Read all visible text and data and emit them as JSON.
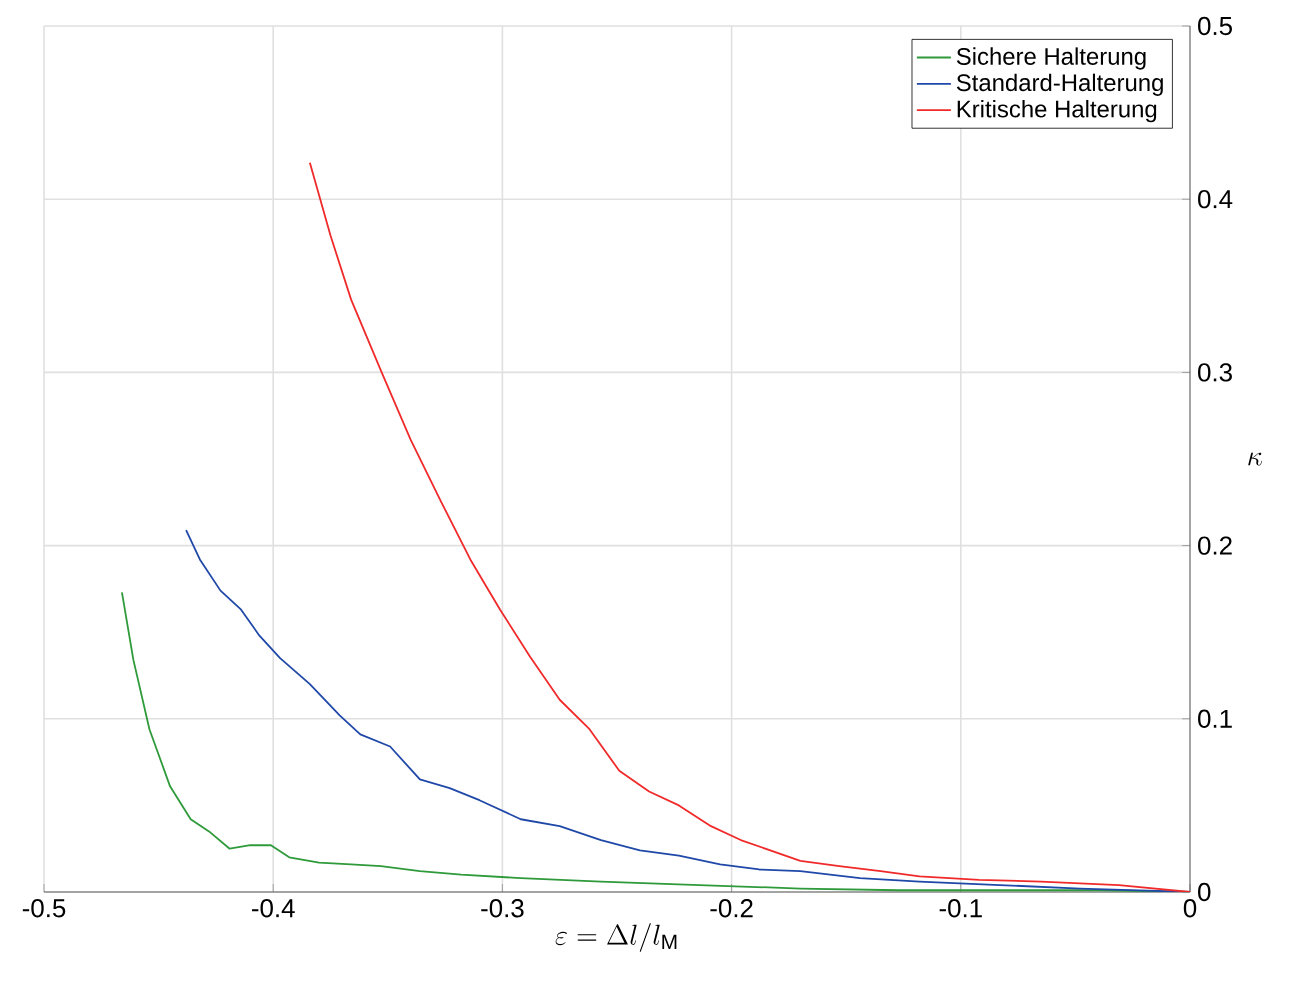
{
  "chart_data": {
    "type": "line",
    "xlabel": "\\varepsilon = \\Delta l/l_\\mathrm{M}",
    "ylabel": "\\kappa",
    "xlim": [
      -0.5,
      0
    ],
    "ylim": [
      0,
      0.5
    ],
    "xticks": [
      -0.5,
      -0.4,
      -0.3,
      -0.2,
      -0.1,
      0
    ],
    "yticks": [
      0,
      0.1,
      0.2,
      0.3,
      0.4,
      0.5
    ],
    "grid": true,
    "legend": "top right",
    "marker": "none",
    "line_style": "solid",
    "series": [
      {
        "name": "Sichere Halterung",
        "color": "#2e9a3a",
        "x": [
          -0.466,
          -0.461,
          -0.454,
          -0.445,
          -0.436,
          -0.428,
          -0.419,
          -0.41,
          -0.401,
          -0.393,
          -0.38,
          -0.366,
          -0.353,
          -0.336,
          -0.318,
          -0.292,
          -0.257,
          -0.214,
          -0.17,
          -0.127,
          -0.083,
          -0.039,
          0
        ],
        "values": [
          0.173,
          0.134,
          0.094,
          0.061,
          0.042,
          0.035,
          0.025,
          0.027,
          0.027,
          0.02,
          0.017,
          0.016,
          0.015,
          0.012,
          0.01,
          0.008,
          0.006,
          0.004,
          0.002,
          0.001,
          0.001,
          0.001,
          0
        ]
      },
      {
        "name": "Standard-Halterung",
        "color": "#1f48a8",
        "x": [
          -0.438,
          -0.432,
          -0.423,
          -0.414,
          -0.406,
          -0.397,
          -0.384,
          -0.371,
          -0.362,
          -0.349,
          -0.336,
          -0.323,
          -0.31,
          -0.292,
          -0.275,
          -0.257,
          -0.24,
          -0.223,
          -0.205,
          -0.188,
          -0.17,
          -0.144,
          -0.118,
          -0.083,
          -0.048,
          0
        ],
        "values": [
          0.209,
          0.192,
          0.174,
          0.163,
          0.148,
          0.135,
          0.12,
          0.102,
          0.091,
          0.084,
          0.065,
          0.06,
          0.053,
          0.042,
          0.038,
          0.03,
          0.024,
          0.021,
          0.016,
          0.013,
          0.012,
          0.008,
          0.006,
          0.004,
          0.002,
          0
        ]
      },
      {
        "name": "Kritische Halterung",
        "color": "#f02a2a",
        "x": [
          -0.384,
          -0.375,
          -0.366,
          -0.353,
          -0.34,
          -0.327,
          -0.314,
          -0.301,
          -0.288,
          -0.275,
          -0.262,
          -0.249,
          -0.236,
          -0.223,
          -0.209,
          -0.196,
          -0.183,
          -0.17,
          -0.153,
          -0.135,
          -0.118,
          -0.092,
          -0.065,
          -0.031,
          0
        ],
        "values": [
          0.421,
          0.379,
          0.342,
          0.301,
          0.261,
          0.226,
          0.192,
          0.163,
          0.136,
          0.111,
          0.094,
          0.07,
          0.058,
          0.05,
          0.038,
          0.03,
          0.024,
          0.018,
          0.015,
          0.012,
          0.009,
          0.007,
          0.006,
          0.004,
          0
        ]
      }
    ]
  }
}
